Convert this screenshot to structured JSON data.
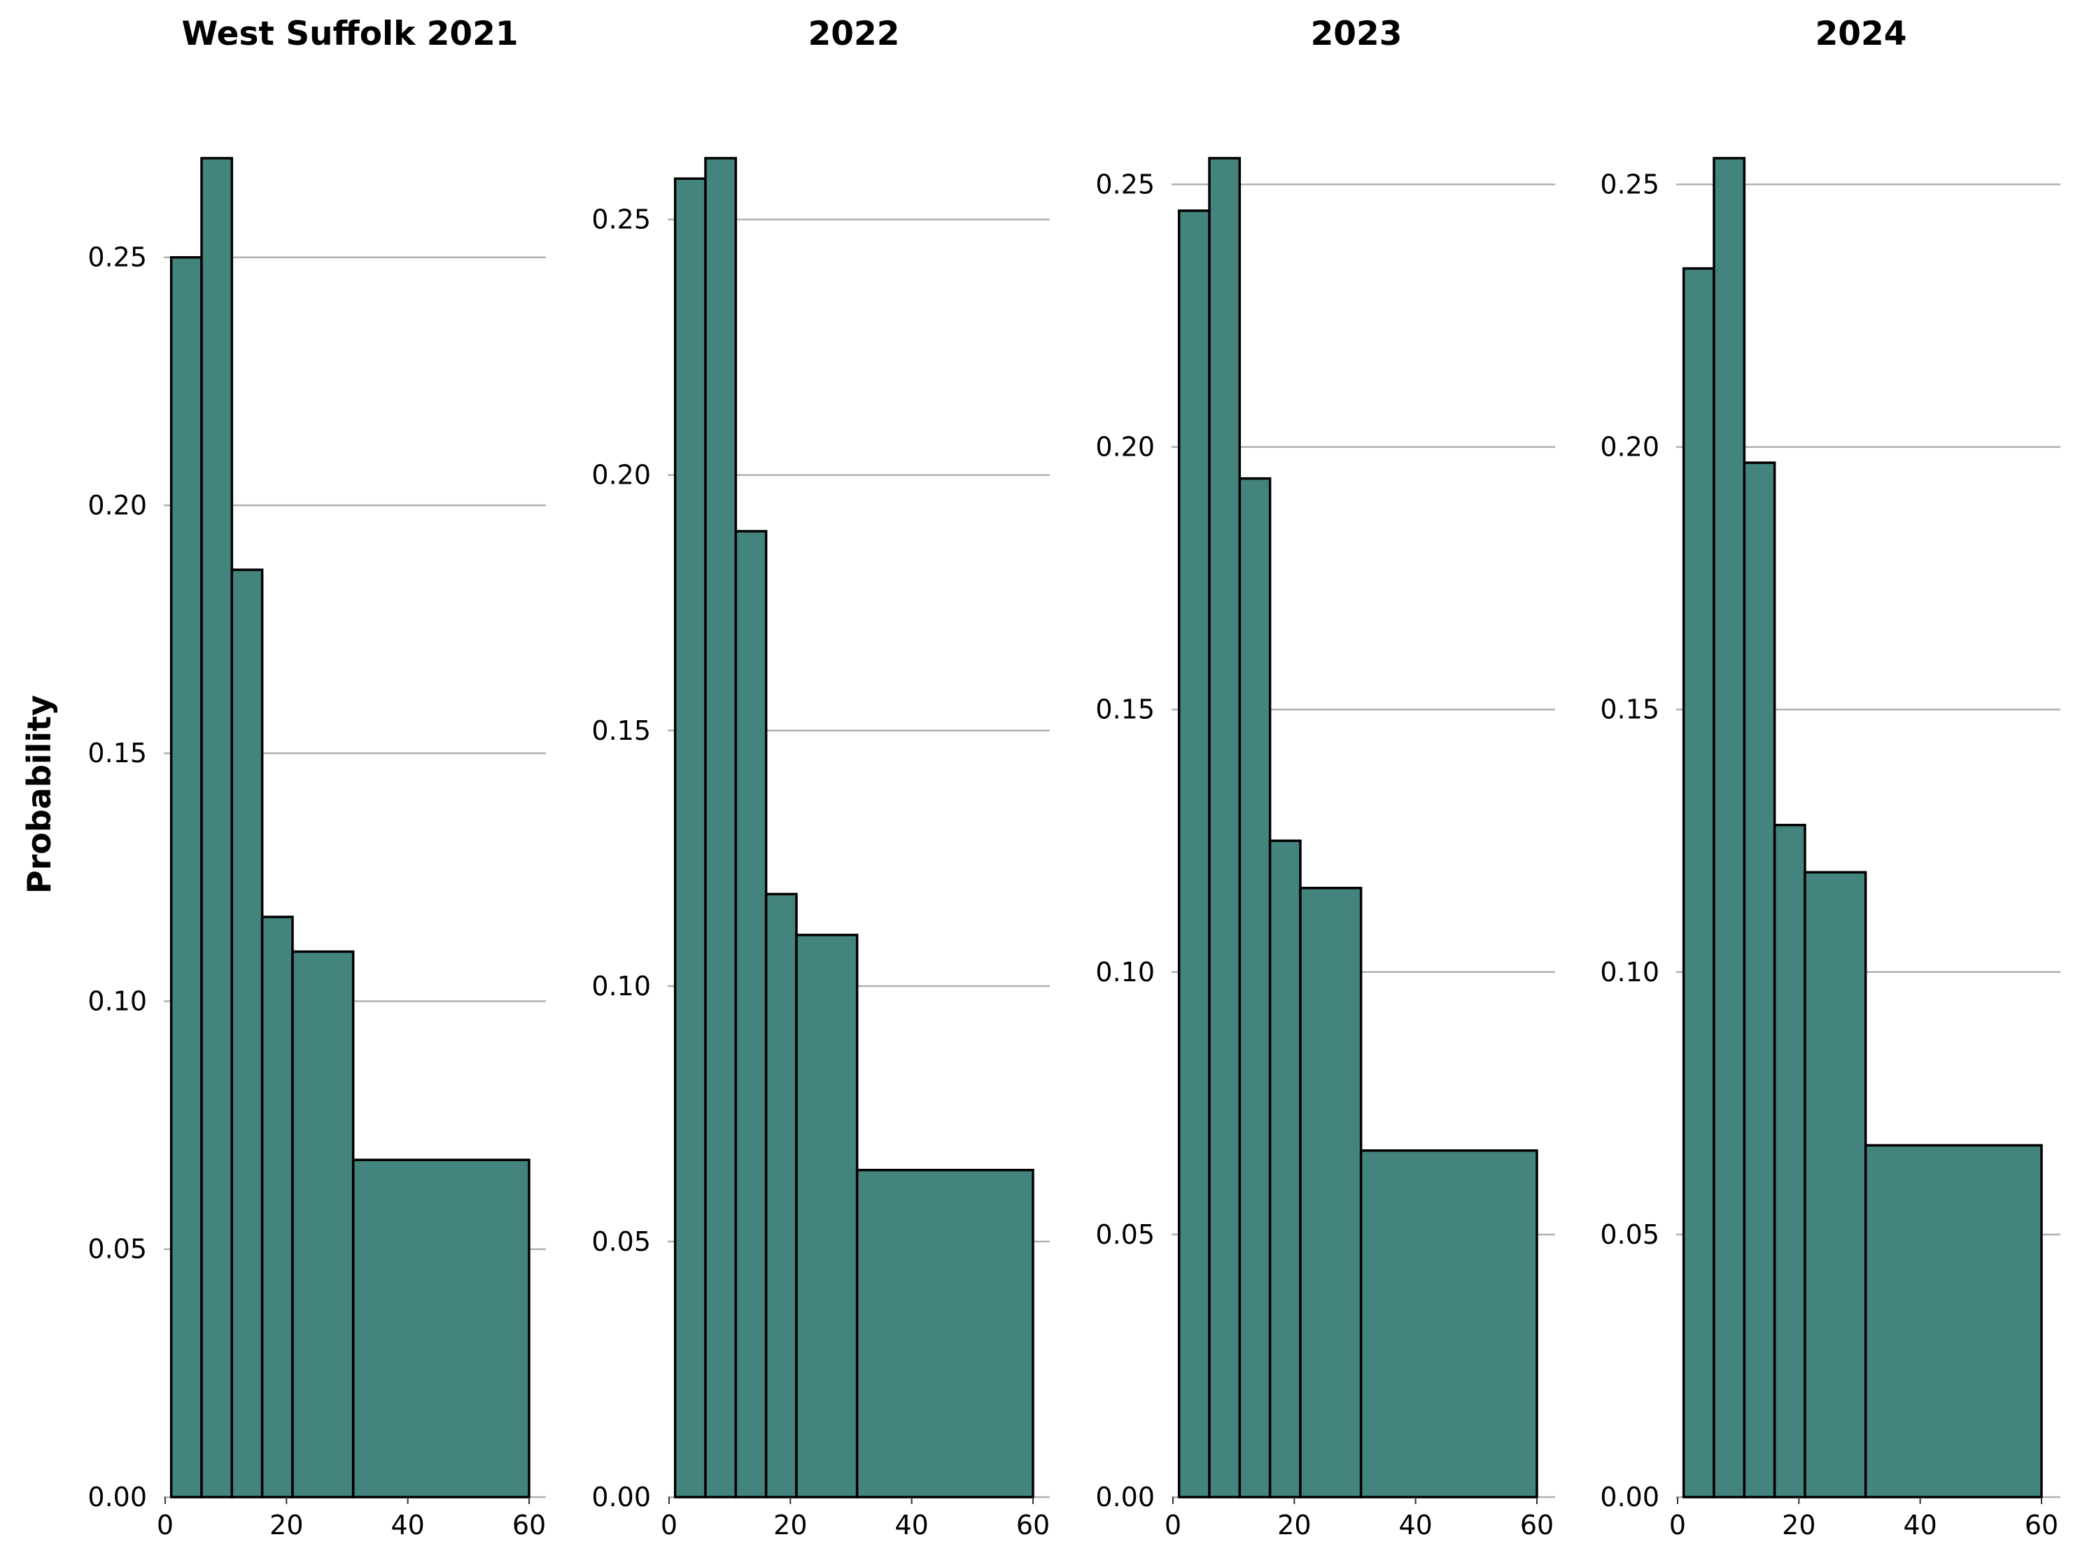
{
  "figure": {
    "ylabel": "Probability"
  },
  "chart_data": [
    {
      "type": "bar",
      "title": "West Suffolk 2021",
      "ylabel": "Probability",
      "xlabel": "",
      "xlim": [
        0,
        60
      ],
      "ylim": [
        0,
        0.27
      ],
      "xticks": [
        "0",
        "20",
        "40",
        "60"
      ],
      "yticks": [
        "0.00",
        "0.05",
        "0.10",
        "0.15",
        "0.20",
        "0.25"
      ],
      "grid": "y",
      "bins": [
        [
          1,
          6
        ],
        [
          6,
          11
        ],
        [
          11,
          16
        ],
        [
          16,
          21
        ],
        [
          21,
          31
        ],
        [
          31,
          60
        ]
      ],
      "values": [
        0.25,
        0.27,
        0.187,
        0.117,
        0.11,
        0.068
      ]
    },
    {
      "type": "bar",
      "title": "2022",
      "xlabel": "",
      "xlim": [
        0,
        60
      ],
      "ylim": [
        0,
        0.262
      ],
      "xticks": [
        "0",
        "20",
        "40",
        "60"
      ],
      "yticks": [
        "0.00",
        "0.05",
        "0.10",
        "0.15",
        "0.20",
        "0.25"
      ],
      "grid": "y",
      "bins": [
        [
          1,
          6
        ],
        [
          6,
          11
        ],
        [
          11,
          16
        ],
        [
          16,
          21
        ],
        [
          21,
          31
        ],
        [
          31,
          60
        ]
      ],
      "values": [
        0.258,
        0.262,
        0.189,
        0.118,
        0.11,
        0.064
      ]
    },
    {
      "type": "bar",
      "title": "2023",
      "xlabel": "",
      "xlim": [
        0,
        60
      ],
      "ylim": [
        0,
        0.255
      ],
      "xticks": [
        "0",
        "20",
        "40",
        "60"
      ],
      "yticks": [
        "0.00",
        "0.05",
        "0.10",
        "0.15",
        "0.20",
        "0.25"
      ],
      "grid": "y",
      "bins": [
        [
          1,
          6
        ],
        [
          6,
          11
        ],
        [
          11,
          16
        ],
        [
          16,
          21
        ],
        [
          21,
          31
        ],
        [
          31,
          60
        ]
      ],
      "values": [
        0.245,
        0.255,
        0.194,
        0.125,
        0.116,
        0.066
      ]
    },
    {
      "type": "bar",
      "title": "2024",
      "xlabel": "",
      "xlim": [
        0,
        60
      ],
      "ylim": [
        0,
        0.255
      ],
      "xticks": [
        "0",
        "20",
        "40",
        "60"
      ],
      "yticks": [
        "0.00",
        "0.05",
        "0.10",
        "0.15",
        "0.20",
        "0.25"
      ],
      "grid": "y",
      "bins": [
        [
          1,
          6
        ],
        [
          6,
          11
        ],
        [
          11,
          16
        ],
        [
          16,
          21
        ],
        [
          21,
          31
        ],
        [
          31,
          60
        ]
      ],
      "values": [
        0.234,
        0.255,
        0.197,
        0.128,
        0.119,
        0.067
      ]
    }
  ]
}
